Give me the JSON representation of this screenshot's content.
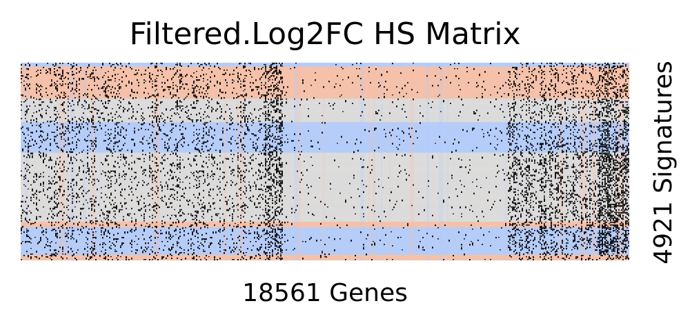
{
  "chart_data": {
    "type": "heatmap",
    "title": "Filtered.Log2FC HS Matrix",
    "xlabel": "18561 Genes",
    "ylabel": "4921 Signatures",
    "n_genes": 18561,
    "n_signatures": 4921,
    "colormap": "coolwarm",
    "colors": {
      "low": "#b4cdfa",
      "mid": "#dcdcdc",
      "high": "#f6c1a8",
      "missing": "#000000"
    },
    "row_bands": [
      {
        "from": 0.0,
        "to": 0.02,
        "tone": "low"
      },
      {
        "from": 0.02,
        "to": 0.18,
        "tone": "high"
      },
      {
        "from": 0.18,
        "to": 0.3,
        "tone": "mid"
      },
      {
        "from": 0.3,
        "to": 0.45,
        "tone": "low"
      },
      {
        "from": 0.45,
        "to": 0.8,
        "tone": "mid"
      },
      {
        "from": 0.8,
        "to": 0.83,
        "tone": "high"
      },
      {
        "from": 0.83,
        "to": 0.97,
        "tone": "low"
      },
      {
        "from": 0.97,
        "to": 1.0,
        "tone": "high"
      }
    ],
    "dense_missing_columns": [
      {
        "from": 0.4,
        "to": 0.43
      },
      {
        "from": 0.95,
        "to": 1.0
      }
    ],
    "sparse_missing_regions": [
      {
        "from": 0.0,
        "to": 0.4,
        "density": 0.35
      },
      {
        "from": 0.8,
        "to": 0.95,
        "density": 0.45
      }
    ],
    "grid": false,
    "legend": "none"
  }
}
